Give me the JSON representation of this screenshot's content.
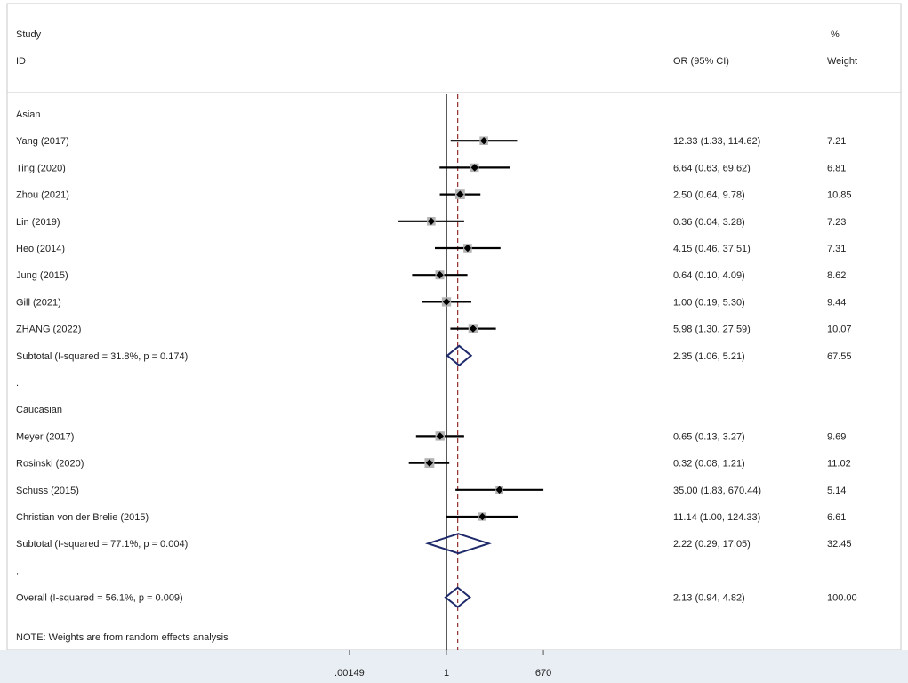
{
  "chart_data": {
    "type": "forest",
    "header": {
      "study_line1": "Study",
      "study_line2": "ID",
      "or_label": "OR (95% CI)",
      "pct_line1": "%",
      "pct_line2": "Weight"
    },
    "x_scale": "log",
    "xlim": [
      0.00149,
      670
    ],
    "x_ticks": [
      {
        "value": 0.00149,
        "label": ".00149"
      },
      {
        "value": 1,
        "label": "1"
      },
      {
        "value": 670,
        "label": "670"
      }
    ],
    "null_line": 1,
    "overall_line": 2.13,
    "rows": [
      {
        "kind": "group",
        "label": "Asian"
      },
      {
        "kind": "study",
        "label": "Yang (2017)",
        "or": 12.33,
        "lo": 1.33,
        "hi": 114.62,
        "ci_text": "12.33 (1.33, 114.62)",
        "weight": "7.21"
      },
      {
        "kind": "study",
        "label": "Ting (2020)",
        "or": 6.64,
        "lo": 0.63,
        "hi": 69.62,
        "ci_text": "6.64 (0.63, 69.62)",
        "weight": "6.81"
      },
      {
        "kind": "study",
        "label": "Zhou (2021)",
        "or": 2.5,
        "lo": 0.64,
        "hi": 9.78,
        "ci_text": "2.50 (0.64, 9.78)",
        "weight": "10.85"
      },
      {
        "kind": "study",
        "label": "Lin (2019)",
        "or": 0.36,
        "lo": 0.04,
        "hi": 3.28,
        "ci_text": "0.36 (0.04, 3.28)",
        "weight": "7.23"
      },
      {
        "kind": "study",
        "label": "Heo (2014)",
        "or": 4.15,
        "lo": 0.46,
        "hi": 37.51,
        "ci_text": "4.15 (0.46, 37.51)",
        "weight": "7.31"
      },
      {
        "kind": "study",
        "label": "Jung (2015)",
        "or": 0.64,
        "lo": 0.1,
        "hi": 4.09,
        "ci_text": "0.64 (0.10, 4.09)",
        "weight": "8.62"
      },
      {
        "kind": "study",
        "label": "Gill (2021)",
        "or": 1.0,
        "lo": 0.19,
        "hi": 5.3,
        "ci_text": "1.00 (0.19, 5.30)",
        "weight": "9.44"
      },
      {
        "kind": "study",
        "label": "ZHANG (2022)",
        "or": 5.98,
        "lo": 1.3,
        "hi": 27.59,
        "ci_text": "5.98 (1.30, 27.59)",
        "weight": "10.07"
      },
      {
        "kind": "subtotal",
        "label": "Subtotal  (I-squared = 31.8%, p = 0.174)",
        "or": 2.35,
        "lo": 1.06,
        "hi": 5.21,
        "ci_text": "2.35 (1.06, 5.21)",
        "weight": "67.55"
      },
      {
        "kind": "sep",
        "label": "."
      },
      {
        "kind": "group",
        "label": "Caucasian"
      },
      {
        "kind": "study",
        "label": "Meyer (2017)",
        "or": 0.65,
        "lo": 0.13,
        "hi": 3.27,
        "ci_text": "0.65 (0.13, 3.27)",
        "weight": "9.69"
      },
      {
        "kind": "study",
        "label": "Rosinski (2020)",
        "or": 0.32,
        "lo": 0.08,
        "hi": 1.21,
        "ci_text": "0.32 (0.08, 1.21)",
        "weight": "11.02"
      },
      {
        "kind": "study",
        "label": "Schuss (2015)",
        "or": 35.0,
        "lo": 1.83,
        "hi": 670.44,
        "ci_text": "35.00 (1.83, 670.44)",
        "weight": "5.14"
      },
      {
        "kind": "study",
        "label": "Christian von der Brelie (2015)",
        "or": 11.14,
        "lo": 1.0,
        "hi": 124.33,
        "ci_text": "11.14 (1.00, 124.33)",
        "weight": "6.61"
      },
      {
        "kind": "subtotal",
        "label": "Subtotal  (I-squared = 77.1%, p = 0.004)",
        "or": 2.22,
        "lo": 0.29,
        "hi": 17.05,
        "ci_text": "2.22 (0.29, 17.05)",
        "weight": "32.45"
      },
      {
        "kind": "sep",
        "label": "."
      },
      {
        "kind": "subtotal",
        "label": "Overall  (I-squared = 56.1%, p = 0.009)",
        "or": 2.13,
        "lo": 0.94,
        "hi": 4.82,
        "ci_text": "2.13 (0.94, 4.82)",
        "weight": "100.00"
      }
    ],
    "note": "NOTE: Weights are from random effects analysis",
    "colors": {
      "line": "#000000",
      "marker_box": "#b3b3b3",
      "diamond": "#1f2a6b",
      "overall_line": "#8b1a1a",
      "axis_band": "#e8eef3"
    }
  }
}
